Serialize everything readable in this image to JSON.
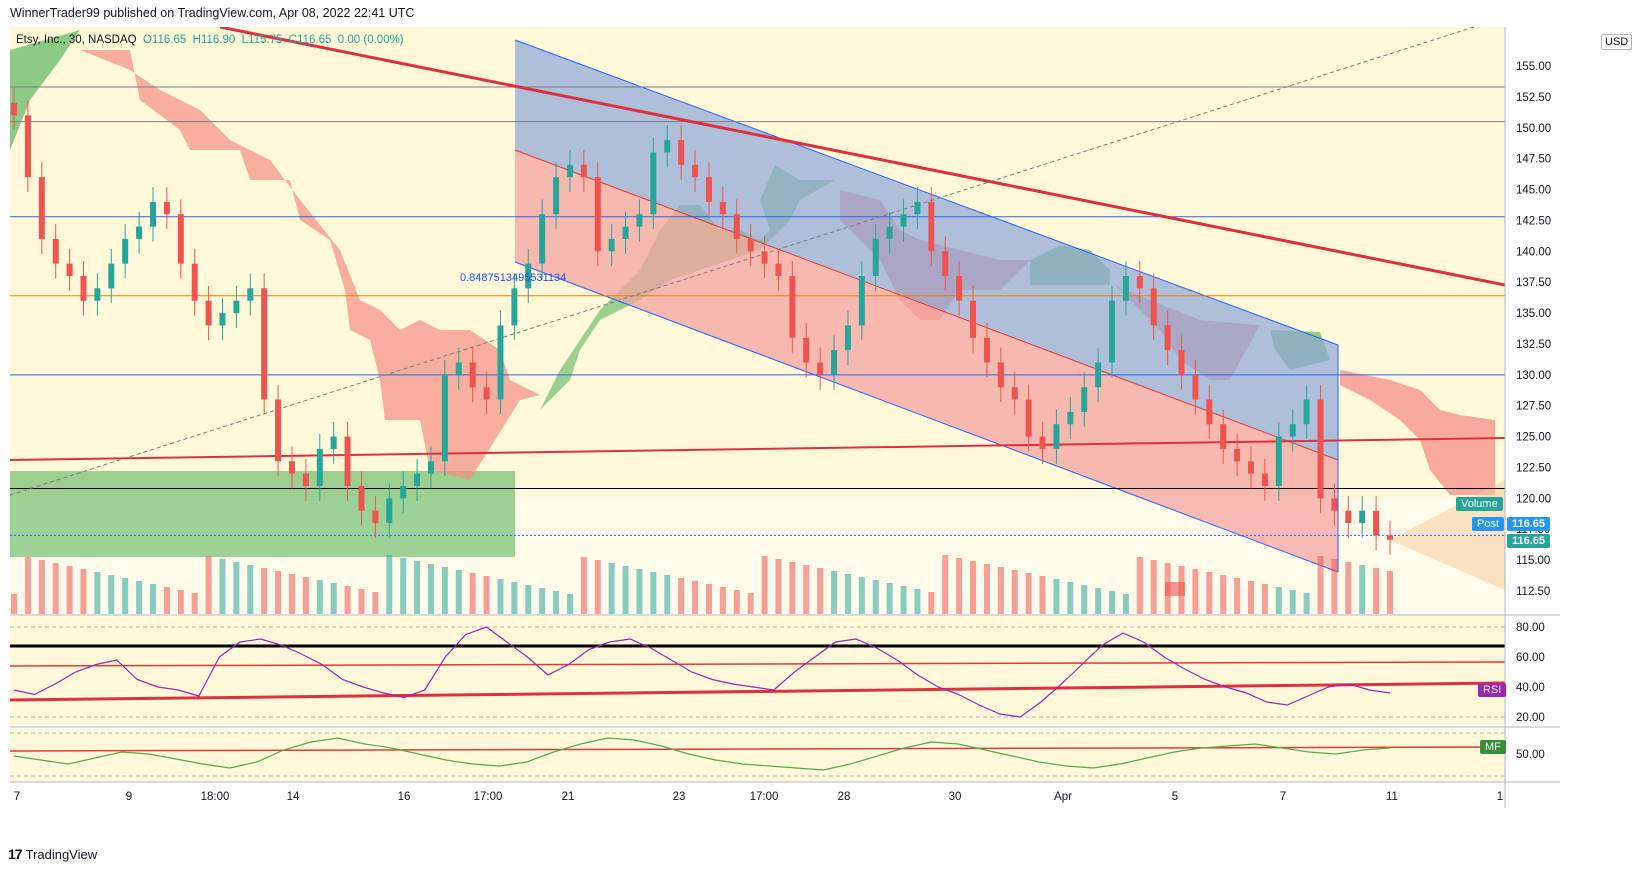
{
  "header": {
    "published": "WinnerTrader99 published on TradingView.com, Apr 08, 2022 22:41 UTC"
  },
  "legend": {
    "symbol": "Etsy, Inc., 30, NASDAQ",
    "o": "O116.65",
    "h": "H116.90",
    "l": "L115.75",
    "c": "C116.65",
    "chg": "0.00 (0.00%)"
  },
  "currency": "USD",
  "fib_label": "0.8487513495531134",
  "price_axis_labels": [
    "155.00",
    "152.50",
    "150.00",
    "147.50",
    "145.00",
    "142.50",
    "140.00",
    "137.50",
    "135.00",
    "132.50",
    "130.00",
    "127.50",
    "125.00",
    "122.50",
    "120.00",
    "117.50",
    "115.00",
    "112.50"
  ],
  "price_tags": {
    "volume_label": "Volume",
    "post_label": "Post",
    "post_price": "116.65",
    "last_price": "116.65"
  },
  "rsi_axis_labels": [
    "80.00",
    "60.00",
    "40.00",
    "20.00"
  ],
  "rsi_tag": "RSI",
  "mf_axis_labels": [
    "50.00"
  ],
  "mf_tag": "MF",
  "time_labels": [
    "7",
    "9",
    "18:00",
    "14",
    "16",
    "17:00",
    "21",
    "23",
    "17:00",
    "28",
    "30",
    "Apr",
    "5",
    "7",
    "11",
    "1"
  ],
  "footer": {
    "brand": "TradingView"
  },
  "colors": {
    "up": "#26a69a",
    "down": "#ef5350",
    "channel_blue": "#8ea6d9",
    "channel_red": "#f4a3a0",
    "trend_red": "#e03040",
    "rsi": "#9c27b0",
    "mf": "#4caf50",
    "bg": "#fff9d9"
  },
  "chart_data": {
    "type": "candlestick",
    "price_range": [
      110,
      158
    ],
    "levels": [
      153.3,
      150.5,
      142.8,
      136.4,
      130.0,
      120.8,
      117.0
    ],
    "closes": [
      151,
      146,
      141,
      139,
      138,
      136,
      137,
      139,
      141,
      142,
      144,
      143,
      139,
      136,
      134,
      135,
      136,
      137,
      128,
      123,
      122,
      121,
      124,
      125,
      121,
      119,
      118,
      120,
      121,
      122,
      123,
      130,
      131,
      129,
      128,
      134,
      137,
      139,
      143,
      146,
      147,
      146,
      140,
      141,
      142,
      143,
      148,
      149,
      147,
      146,
      144,
      143,
      141,
      140,
      139,
      138,
      133,
      131,
      130,
      132,
      134,
      138,
      141,
      142,
      143,
      144,
      140,
      138,
      136,
      133,
      131,
      129,
      128,
      125,
      124,
      126,
      127,
      129,
      131,
      136,
      138,
      137,
      134,
      132,
      130,
      128,
      126,
      124,
      123,
      122,
      121,
      125,
      126,
      128,
      120,
      119,
      118,
      119,
      117,
      116.65
    ],
    "rsi": [
      38,
      35,
      42,
      50,
      55,
      58,
      45,
      40,
      38,
      34,
      60,
      70,
      72,
      68,
      62,
      55,
      45,
      40,
      36,
      33,
      38,
      60,
      75,
      80,
      70,
      60,
      48,
      55,
      65,
      70,
      72,
      66,
      58,
      50,
      45,
      42,
      40,
      38,
      50,
      60,
      70,
      72,
      66,
      58,
      48,
      40,
      35,
      28,
      22,
      20,
      30,
      42,
      55,
      68,
      76,
      70,
      60,
      52,
      45,
      40,
      36,
      30,
      28,
      34,
      40,
      42,
      38,
      36
    ],
    "mf": [
      48,
      44,
      40,
      46,
      52,
      50,
      45,
      40,
      36,
      42,
      54,
      62,
      66,
      60,
      56,
      50,
      44,
      40,
      38,
      42,
      52,
      60,
      66,
      64,
      58,
      50,
      44,
      40,
      38,
      36,
      34,
      40,
      48,
      56,
      62,
      60,
      54,
      48,
      42,
      38,
      36,
      40,
      46,
      52,
      56,
      58,
      60,
      56,
      52,
      50,
      54,
      56
    ]
  }
}
